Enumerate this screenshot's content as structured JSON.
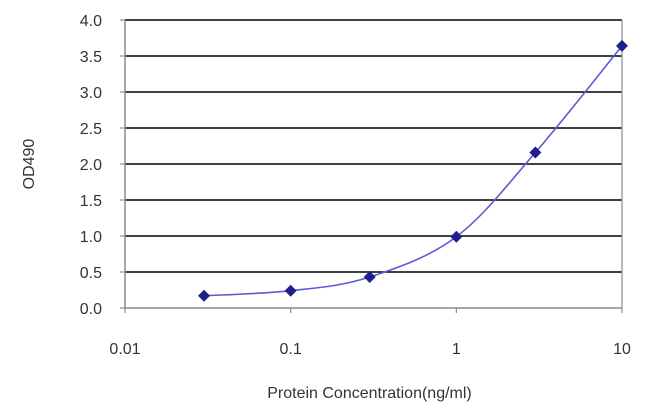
{
  "chart_data": {
    "type": "line",
    "title": "",
    "xlabel": "Protein Concentration(ng/ml)",
    "ylabel": "OD490",
    "x_scale": "log",
    "xlim": [
      0.01,
      10
    ],
    "ylim": [
      0,
      4
    ],
    "x_ticks": [
      "0.01",
      "0.1",
      "1",
      "10"
    ],
    "y_ticks": [
      "0.0",
      "0.5",
      "1.0",
      "1.5",
      "2.0",
      "2.5",
      "3.0",
      "3.5",
      "4.0"
    ],
    "grid": "horizontal",
    "legend": "none",
    "series": [
      {
        "x": [
          0.03,
          0.1,
          0.3,
          1,
          3,
          10
        ],
        "y": [
          0.17,
          0.24,
          0.43,
          0.99,
          2.16,
          3.64
        ]
      }
    ],
    "colors": {
      "line": "#5b5bd6",
      "marker": "#1f1f8c",
      "grid": "#000000",
      "axis": "#8a8a8a"
    }
  }
}
